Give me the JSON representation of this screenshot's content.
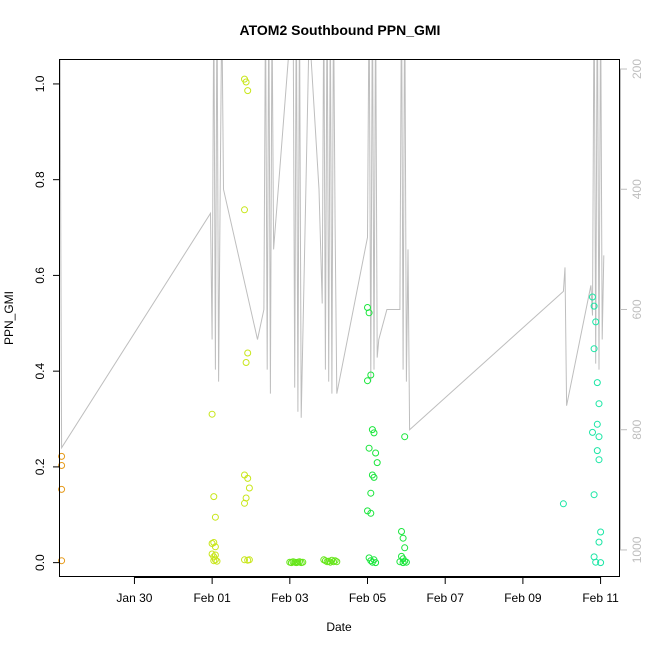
{
  "chart_data": {
    "type": "scatter",
    "title": "ATOM2 Southbound PPN_GMI",
    "xlabel": "Date",
    "ylabel": "PPN_GMI",
    "xlim": [
      "2017-01-28T02:00",
      "2017-02-11T12:00"
    ],
    "ylim": [
      -0.03,
      1.05
    ],
    "x_ticks": [
      {
        "x": "2017-01-30T00:00",
        "label": "Jan 30"
      },
      {
        "x": "2017-02-01T00:00",
        "label": "Feb 01"
      },
      {
        "x": "2017-02-03T00:00",
        "label": "Feb 03"
      },
      {
        "x": "2017-02-05T00:00",
        "label": "Feb 05"
      },
      {
        "x": "2017-02-07T00:00",
        "label": "Feb 07"
      },
      {
        "x": "2017-02-09T00:00",
        "label": "Feb 09"
      },
      {
        "x": "2017-02-11T00:00",
        "label": "Feb 11"
      }
    ],
    "y_ticks": [
      {
        "y": 0.0,
        "label": "0.0"
      },
      {
        "y": 0.2,
        "label": "0.2"
      },
      {
        "y": 0.4,
        "label": "0.4"
      },
      {
        "y": 0.6,
        "label": "0.6"
      },
      {
        "y": 0.8,
        "label": "0.8"
      },
      {
        "y": 1.0,
        "label": "1.0"
      }
    ],
    "y2_axis": {
      "position": "right",
      "reversed": true,
      "lim": [
        185,
        1045
      ],
      "color": "#bebebe",
      "ticks": [
        {
          "y": 200,
          "label": "200"
        },
        {
          "y": 400,
          "label": "400"
        },
        {
          "y": 600,
          "label": "600"
        },
        {
          "y": 800,
          "label": "800"
        },
        {
          "y": 1000,
          "label": "1000"
        }
      ]
    },
    "depth_track": {
      "color": "#bebebe",
      "points": [
        [
          "2017-01-28T02:00",
          130
        ],
        [
          "2017-01-28T03:00",
          830
        ],
        [
          "2017-01-31T23:00",
          440
        ],
        [
          "2017-02-01T00:00",
          650
        ],
        [
          "2017-02-01T01:00",
          80
        ],
        [
          "2017-02-01T02:00",
          700
        ],
        [
          "2017-02-01T03:00",
          60
        ],
        [
          "2017-02-01T04:00",
          720
        ],
        [
          "2017-02-01T06:00",
          90
        ],
        [
          "2017-02-01T07:00",
          400
        ],
        [
          "2017-02-02T04:00",
          650
        ],
        [
          "2017-02-02T08:00",
          600
        ],
        [
          "2017-02-02T09:00",
          90
        ],
        [
          "2017-02-02T10:00",
          700
        ],
        [
          "2017-02-02T11:00",
          70
        ],
        [
          "2017-02-02T12:00",
          740
        ],
        [
          "2017-02-02T13:00",
          100
        ],
        [
          "2017-02-02T14:00",
          500
        ],
        [
          "2017-02-03T02:00",
          80
        ],
        [
          "2017-02-03T03:00",
          730
        ],
        [
          "2017-02-03T04:00",
          60
        ],
        [
          "2017-02-03T05:00",
          770
        ],
        [
          "2017-02-03T06:00",
          90
        ],
        [
          "2017-02-03T07:00",
          780
        ],
        [
          "2017-02-03T12:00",
          130
        ],
        [
          "2017-02-03T18:00",
          400
        ],
        [
          "2017-02-03T20:00",
          590
        ],
        [
          "2017-02-03T21:00",
          80
        ],
        [
          "2017-02-03T22:00",
          700
        ],
        [
          "2017-02-03T23:00",
          60
        ],
        [
          "2017-02-04T00:00",
          720
        ],
        [
          "2017-02-04T01:00",
          90
        ],
        [
          "2017-02-04T02:00",
          740
        ],
        [
          "2017-02-04T03:00",
          80
        ],
        [
          "2017-02-04T04:00",
          460
        ],
        [
          "2017-02-04T05:00",
          740
        ],
        [
          "2017-02-05T00:00",
          480
        ],
        [
          "2017-02-05T01:00",
          70
        ],
        [
          "2017-02-05T02:00",
          720
        ],
        [
          "2017-02-05T03:00",
          60
        ],
        [
          "2017-02-05T04:00",
          700
        ],
        [
          "2017-02-05T05:00",
          80
        ],
        [
          "2017-02-05T06:00",
          680
        ],
        [
          "2017-02-05T07:00",
          650
        ],
        [
          "2017-02-05T12:00",
          600
        ],
        [
          "2017-02-05T20:00",
          600
        ],
        [
          "2017-02-05T21:00",
          60
        ],
        [
          "2017-02-05T22:00",
          700
        ],
        [
          "2017-02-05T23:00",
          50
        ],
        [
          "2017-02-06T00:00",
          720
        ],
        [
          "2017-02-06T01:00",
          500
        ],
        [
          "2017-02-06T02:00",
          800
        ],
        [
          "2017-02-10T01:00",
          570
        ],
        [
          "2017-02-10T02:00",
          530
        ],
        [
          "2017-02-10T03:00",
          760
        ],
        [
          "2017-02-10T18:00",
          560
        ],
        [
          "2017-02-10T19:00",
          610
        ],
        [
          "2017-02-10T20:00",
          60
        ],
        [
          "2017-02-10T21:00",
          690
        ],
        [
          "2017-02-10T22:00",
          50
        ],
        [
          "2017-02-10T23:00",
          700
        ],
        [
          "2017-02-11T00:00",
          80
        ],
        [
          "2017-02-11T01:00",
          650
        ],
        [
          "2017-02-11T02:00",
          510
        ]
      ]
    },
    "series": [
      {
        "color": "#e69a1a",
        "points": [
          [
            "2017-01-28T03:00",
            0.222
          ],
          [
            "2017-01-28T03:00",
            0.203
          ],
          [
            "2017-01-28T03:00",
            0.153
          ],
          [
            "2017-01-28T03:00",
            0.004
          ]
        ]
      },
      {
        "color": "#c8e61a",
        "points": [
          [
            "2017-02-01T00:00",
            0.31
          ],
          [
            "2017-02-01T01:00",
            0.138
          ],
          [
            "2017-02-01T02:00",
            0.095
          ],
          [
            "2017-02-01T00:00",
            0.04
          ],
          [
            "2017-02-01T01:00",
            0.042
          ],
          [
            "2017-02-01T02:00",
            0.033
          ],
          [
            "2017-02-01T00:00",
            0.018
          ],
          [
            "2017-02-01T01:00",
            0.012
          ],
          [
            "2017-02-01T02:00",
            0.006
          ],
          [
            "2017-02-01T03:00",
            0.003
          ],
          [
            "2017-02-01T02:00",
            0.016
          ],
          [
            "2017-02-01T01:00",
            0.004
          ],
          [
            "2017-02-01T20:00",
            1.01
          ],
          [
            "2017-02-01T21:00",
            1.004
          ],
          [
            "2017-02-01T22:00",
            0.986
          ],
          [
            "2017-02-01T20:00",
            0.737
          ],
          [
            "2017-02-01T22:00",
            0.438
          ],
          [
            "2017-02-01T21:00",
            0.418
          ],
          [
            "2017-02-01T20:00",
            0.183
          ],
          [
            "2017-02-01T22:00",
            0.176
          ],
          [
            "2017-02-01T23:00",
            0.156
          ],
          [
            "2017-02-01T21:00",
            0.135
          ],
          [
            "2017-02-01T20:00",
            0.124
          ],
          [
            "2017-02-01T20:00",
            0.006
          ],
          [
            "2017-02-01T22:00",
            0.005
          ],
          [
            "2017-02-01T23:00",
            0.006
          ]
        ]
      },
      {
        "color": "#66e61a",
        "points": [
          [
            "2017-02-03T00:00",
            0.001
          ],
          [
            "2017-02-03T01:00",
            0.0
          ],
          [
            "2017-02-03T02:00",
            0.002
          ],
          [
            "2017-02-03T03:00",
            0.001
          ],
          [
            "2017-02-03T04:00",
            0.0
          ],
          [
            "2017-02-03T05:00",
            0.001
          ],
          [
            "2017-02-03T06:00",
            0.002
          ],
          [
            "2017-02-03T07:00",
            0.0
          ],
          [
            "2017-02-03T08:00",
            0.001
          ],
          [
            "2017-02-03T21:00",
            0.006
          ],
          [
            "2017-02-03T22:00",
            0.004
          ],
          [
            "2017-02-03T23:00",
            0.002
          ],
          [
            "2017-02-04T00:00",
            0.003
          ],
          [
            "2017-02-04T01:00",
            0.001
          ],
          [
            "2017-02-04T02:00",
            0.005
          ],
          [
            "2017-02-04T03:00",
            0.002
          ],
          [
            "2017-02-04T04:00",
            0.004
          ],
          [
            "2017-02-04T05:00",
            0.002
          ]
        ]
      },
      {
        "color": "#1ae63c",
        "points": [
          [
            "2017-02-05T00:00",
            0.533
          ],
          [
            "2017-02-05T01:00",
            0.522
          ],
          [
            "2017-02-05T02:00",
            0.392
          ],
          [
            "2017-02-05T00:00",
            0.38
          ],
          [
            "2017-02-05T03:00",
            0.278
          ],
          [
            "2017-02-05T04:00",
            0.271
          ],
          [
            "2017-02-05T01:00",
            0.239
          ],
          [
            "2017-02-05T05:00",
            0.229
          ],
          [
            "2017-02-05T06:00",
            0.209
          ],
          [
            "2017-02-05T03:00",
            0.183
          ],
          [
            "2017-02-05T04:00",
            0.178
          ],
          [
            "2017-02-05T02:00",
            0.145
          ],
          [
            "2017-02-05T00:00",
            0.108
          ],
          [
            "2017-02-05T02:00",
            0.103
          ],
          [
            "2017-02-05T01:00",
            0.01
          ],
          [
            "2017-02-05T02:00",
            0.004
          ],
          [
            "2017-02-05T03:00",
            0.001
          ],
          [
            "2017-02-05T04:00",
            0.006
          ],
          [
            "2017-02-05T05:00",
            0.0
          ],
          [
            "2017-02-05T23:00",
            0.263
          ],
          [
            "2017-02-05T21:00",
            0.065
          ],
          [
            "2017-02-05T22:00",
            0.051
          ],
          [
            "2017-02-05T23:00",
            0.031
          ],
          [
            "2017-02-05T21:00",
            0.013
          ],
          [
            "2017-02-05T22:00",
            0.008
          ],
          [
            "2017-02-05T23:00",
            0.003
          ],
          [
            "2017-02-05T20:00",
            0.002
          ],
          [
            "2017-02-06T00:00",
            0.001
          ],
          [
            "2017-02-05T22:00",
            0.0
          ]
        ]
      },
      {
        "color": "#1ae6a5",
        "points": [
          [
            "2017-02-10T01:00",
            0.123
          ],
          [
            "2017-02-10T19:00",
            0.555
          ],
          [
            "2017-02-10T20:00",
            0.536
          ],
          [
            "2017-02-10T21:00",
            0.503
          ],
          [
            "2017-02-10T20:00",
            0.447
          ],
          [
            "2017-02-10T22:00",
            0.376
          ],
          [
            "2017-02-10T23:00",
            0.332
          ],
          [
            "2017-02-10T22:00",
            0.289
          ],
          [
            "2017-02-10T19:00",
            0.272
          ],
          [
            "2017-02-10T23:00",
            0.263
          ],
          [
            "2017-02-10T22:00",
            0.234
          ],
          [
            "2017-02-10T23:00",
            0.215
          ],
          [
            "2017-02-10T20:00",
            0.142
          ],
          [
            "2017-02-11T00:00",
            0.064
          ],
          [
            "2017-02-10T23:00",
            0.043
          ],
          [
            "2017-02-10T20:00",
            0.012
          ],
          [
            "2017-02-10T21:00",
            0.001
          ],
          [
            "2017-02-11T00:00",
            0.0
          ]
        ]
      }
    ]
  }
}
